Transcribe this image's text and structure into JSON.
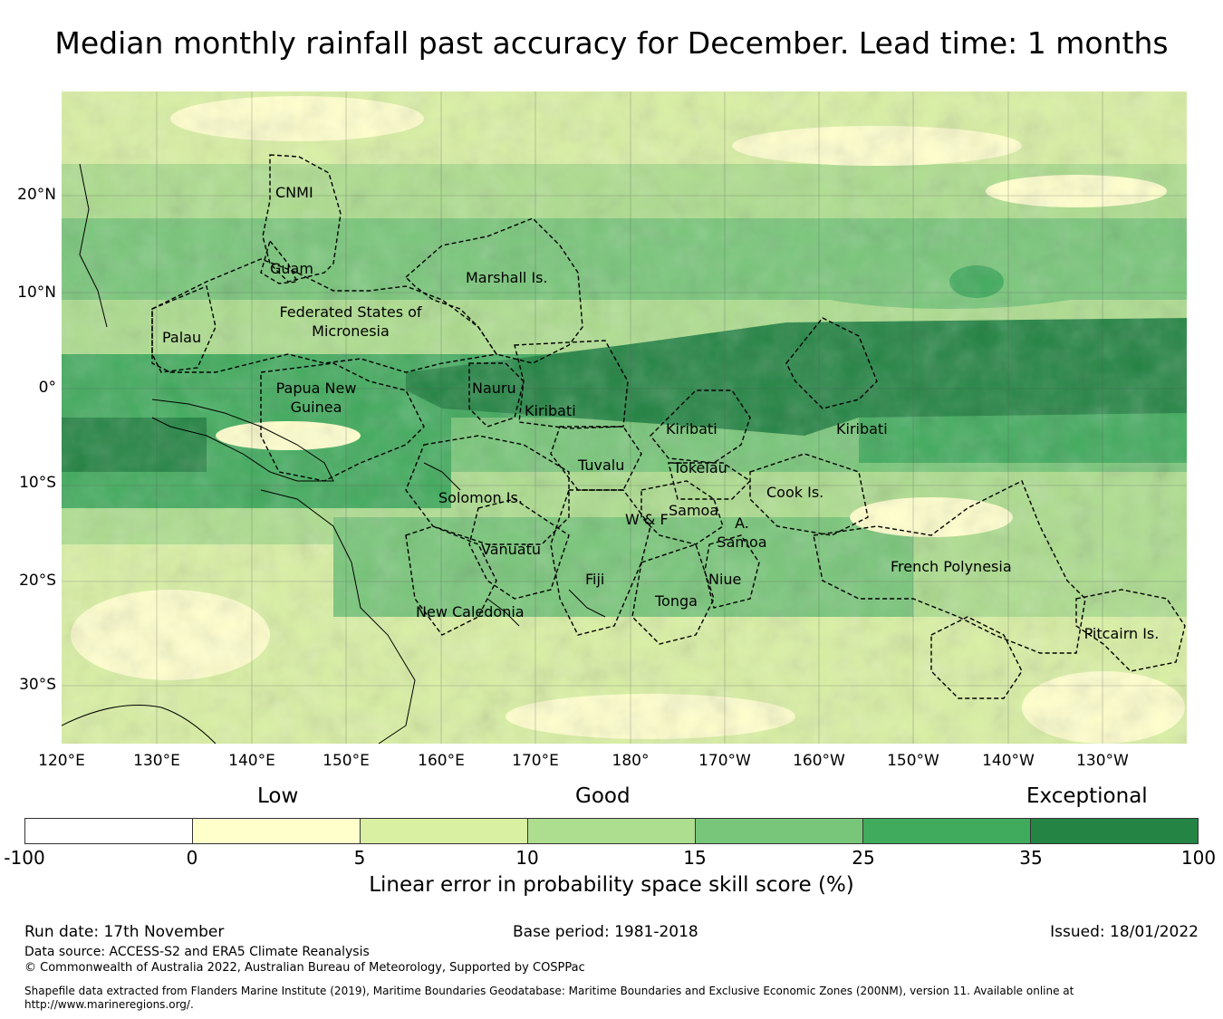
{
  "title": "Median monthly rainfall past accuracy for December. Lead time: 1 months",
  "map": {
    "latitude_labels": [
      "20°N",
      "10°N",
      "0°",
      "10°S",
      "20°S",
      "30°S"
    ],
    "longitude_labels": [
      "120°E",
      "130°E",
      "140°E",
      "150°E",
      "160°E",
      "170°E",
      "180°",
      "170°W",
      "160°W",
      "150°W",
      "140°W",
      "130°W"
    ],
    "regions": [
      "CNMI",
      "Guam",
      "Marshall Is.",
      "Federated States of Micronesia",
      "Palau",
      "Papua New Guinea",
      "Nauru",
      "Kiribati",
      "Kiribati",
      "Kiribati",
      "Tuvalu",
      "Tokelau",
      "Cook Is.",
      "Solomon Is.",
      "Samoa",
      "W & F",
      "A. Samoa",
      "Vanuatu",
      "Fiji",
      "Niue",
      "Tonga",
      "French Polynesia",
      "New Caledonia",
      "Pitcairn Is."
    ]
  },
  "colorbar": {
    "categories": [
      "Low",
      "Good",
      "Exceptional"
    ],
    "ticks": [
      "-100",
      "0",
      "5",
      "10",
      "15",
      "25",
      "35",
      "100"
    ],
    "colors": [
      "#ffffff",
      "#ffffcc",
      "#d9f0a3",
      "#addd8e",
      "#78c679",
      "#41ab5d",
      "#238443"
    ],
    "label": "Linear error in probability space skill score (%)"
  },
  "footer": {
    "run_date": "Run date: 17th November",
    "base_period": "Base period: 1981-2018",
    "issued": "Issued: 18/01/2022",
    "data_source": "Data source: ACCESS-S2 and ERA5 Climate Reanalysis",
    "copyright": "© Commonwealth of Australia 2022, Australian Bureau of Meteorology, Supported by COSPPac",
    "shapefile_note": "Shapefile data extracted from Flanders Marine Institute (2019), Maritime Boundaries Geodatabase: Maritime Boundaries and Exclusive Economic Zones (200NM), version 11. Available online at http://www.marineregions.org/."
  }
}
